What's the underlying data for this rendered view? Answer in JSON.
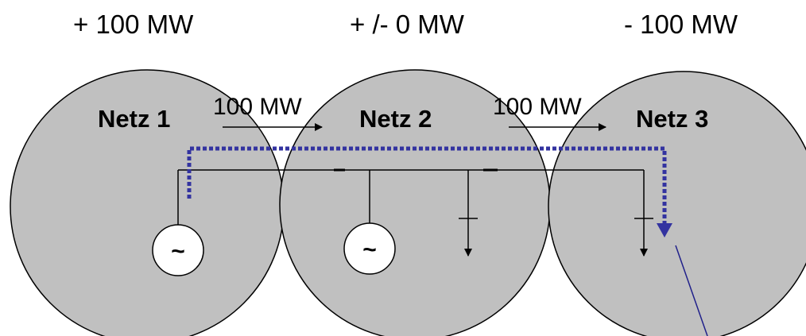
{
  "diagram": {
    "balances": [
      "+ 100 MW",
      "+ /- 0 MW",
      "- 100 MW"
    ],
    "networks": [
      "Netz 1",
      "Netz 2",
      "Netz 3"
    ],
    "flows": [
      "100 MW",
      "100 MW"
    ],
    "generator_symbol": "~",
    "colors": {
      "network_fill": "#c0c0c0",
      "outline": "#000000",
      "path_dotted": "#3333a0",
      "pointer_line": "#20208a"
    }
  }
}
